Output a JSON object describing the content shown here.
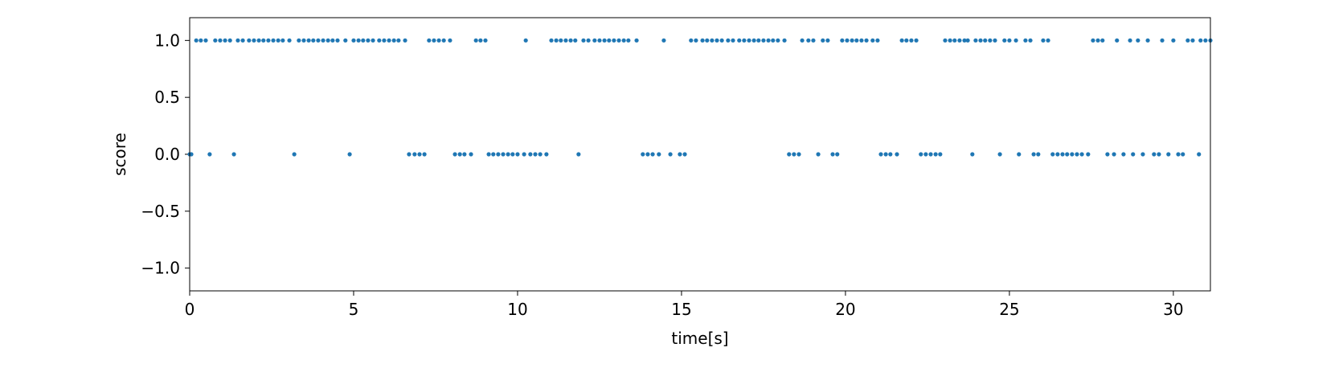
{
  "chart_data": {
    "type": "scatter",
    "xlabel": "time[s]",
    "ylabel": "score",
    "xlim": [
      0,
      31.13
    ],
    "ylim": [
      -1.2,
      1.2
    ],
    "xticks": [
      0,
      5,
      10,
      15,
      20,
      25,
      30
    ],
    "yticks": [
      {
        "value": -1,
        "label": "−1.0"
      },
      {
        "value": -0.5,
        "label": "−0.5"
      },
      {
        "value": 0,
        "label": "0.0"
      },
      {
        "value": 0.5,
        "label": "0.5"
      },
      {
        "value": 1,
        "label": "1.0"
      }
    ],
    "grid": false,
    "series": [
      {
        "color": "#1f77b4",
        "x": [
          0.2,
          0.34,
          0.49,
          0.78,
          0.93,
          1.08,
          1.23,
          1.47,
          1.62,
          1.81,
          1.96,
          2.11,
          2.25,
          2.4,
          2.55,
          2.7,
          2.84,
          3.04,
          3.33,
          3.48,
          3.63,
          3.77,
          3.92,
          4.07,
          4.22,
          4.36,
          4.51,
          4.75,
          5.0,
          5.15,
          5.29,
          5.44,
          5.59,
          5.78,
          5.93,
          6.08,
          6.23,
          6.37,
          6.57,
          7.3,
          7.45,
          7.6,
          7.75,
          7.94,
          8.73,
          8.87,
          9.02,
          10.25,
          11.03,
          11.18,
          11.32,
          11.47,
          11.62,
          11.76,
          12.01,
          12.16,
          12.35,
          12.5,
          12.65,
          12.79,
          12.94,
          13.09,
          13.24,
          13.38,
          13.63,
          14.46,
          15.29,
          15.44,
          15.64,
          15.78,
          15.93,
          16.08,
          16.23,
          16.42,
          16.57,
          16.76,
          16.91,
          17.06,
          17.21,
          17.35,
          17.5,
          17.65,
          17.79,
          17.94,
          18.14,
          18.68,
          18.87,
          19.02,
          19.31,
          19.46,
          19.9,
          20.05,
          20.2,
          20.34,
          20.49,
          20.64,
          20.83,
          20.98,
          21.72,
          21.86,
          22.01,
          22.16,
          23.04,
          23.19,
          23.33,
          23.48,
          23.63,
          23.73,
          23.97,
          24.12,
          24.26,
          24.41,
          24.56,
          24.85,
          25.0,
          25.2,
          25.49,
          25.64,
          26.03,
          26.18,
          27.55,
          27.7,
          27.84,
          28.28,
          28.68,
          28.92,
          29.22,
          29.66,
          30.0,
          30.44,
          30.59,
          30.83,
          30.98,
          31.13,
          0,
          0.05,
          0.61,
          1.35,
          3.19,
          4.88,
          6.69,
          6.86,
          7.01,
          7.16,
          8.09,
          8.24,
          8.38,
          8.58,
          9.12,
          9.26,
          9.41,
          9.56,
          9.71,
          9.85,
          10.0,
          10.2,
          10.39,
          10.54,
          10.69,
          10.88,
          11.86,
          13.82,
          13.97,
          14.12,
          14.31,
          14.66,
          14.95,
          15.1,
          18.28,
          18.43,
          18.58,
          19.17,
          19.61,
          19.75,
          21.08,
          21.23,
          21.37,
          21.57,
          22.3,
          22.45,
          22.6,
          22.75,
          22.89,
          23.87,
          24.71,
          25.29,
          25.74,
          25.88,
          26.32,
          26.47,
          26.62,
          26.76,
          26.91,
          27.06,
          27.21,
          27.4,
          27.99,
          28.19,
          28.48,
          28.77,
          29.07,
          29.41,
          29.56,
          29.85,
          30.15,
          30.29,
          30.78
        ],
        "values": [
          1,
          1,
          1,
          1,
          1,
          1,
          1,
          1,
          1,
          1,
          1,
          1,
          1,
          1,
          1,
          1,
          1,
          1,
          1,
          1,
          1,
          1,
          1,
          1,
          1,
          1,
          1,
          1,
          1,
          1,
          1,
          1,
          1,
          1,
          1,
          1,
          1,
          1,
          1,
          1,
          1,
          1,
          1,
          1,
          1,
          1,
          1,
          1,
          1,
          1,
          1,
          1,
          1,
          1,
          1,
          1,
          1,
          1,
          1,
          1,
          1,
          1,
          1,
          1,
          1,
          1,
          1,
          1,
          1,
          1,
          1,
          1,
          1,
          1,
          1,
          1,
          1,
          1,
          1,
          1,
          1,
          1,
          1,
          1,
          1,
          1,
          1,
          1,
          1,
          1,
          1,
          1,
          1,
          1,
          1,
          1,
          1,
          1,
          1,
          1,
          1,
          1,
          1,
          1,
          1,
          1,
          1,
          1,
          1,
          1,
          1,
          1,
          1,
          1,
          1,
          1,
          1,
          1,
          1,
          1,
          1,
          1,
          1,
          1,
          1,
          1,
          1,
          1,
          1,
          1,
          1,
          1,
          1,
          1,
          0,
          0,
          0,
          0,
          0,
          0,
          0,
          0,
          0,
          0,
          0,
          0,
          0,
          0,
          0,
          0,
          0,
          0,
          0,
          0,
          0,
          0,
          0,
          0,
          0,
          0,
          0,
          0,
          0,
          0,
          0,
          0,
          0,
          0,
          0,
          0,
          0,
          0,
          0,
          0,
          0,
          0,
          0,
          0,
          0,
          0,
          0,
          0,
          0,
          0,
          0,
          0,
          0,
          0,
          0,
          0,
          0,
          0,
          0,
          0,
          0,
          0,
          0,
          0,
          0,
          0,
          0,
          0,
          0,
          0,
          0,
          0,
          0
        ]
      }
    ]
  }
}
